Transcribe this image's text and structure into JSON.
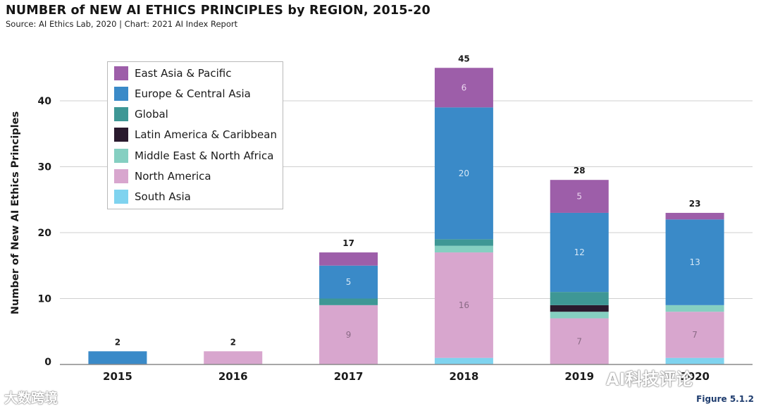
{
  "header": {
    "title": "NUMBER of NEW AI ETHICS PRINCIPLES by REGION, 2015-20",
    "subtitle": "Source: AI Ethics Lab, 2020 | Chart: 2021 AI Index Report"
  },
  "figure_label": "Figure 5.1.2",
  "watermarks": {
    "left": "大数跨境",
    "right": "AI科技评论"
  },
  "chart_data": {
    "type": "bar",
    "stacked": true,
    "title": "NUMBER of NEW AI ETHICS PRINCIPLES by REGION, 2015-20",
    "xlabel": "",
    "ylabel": "Number of New AI Ethics Principles",
    "ylim": [
      0,
      48
    ],
    "yticks": [
      0,
      10,
      20,
      30,
      40
    ],
    "grid": true,
    "legend_position": "top-left",
    "categories": [
      "2015",
      "2016",
      "2017",
      "2018",
      "2019",
      "2020"
    ],
    "totals": [
      2,
      2,
      17,
      45,
      28,
      23
    ],
    "series": [
      {
        "name": "South Asia",
        "color": "#7fd3ef",
        "values": [
          0,
          0,
          0,
          1,
          0,
          1
        ]
      },
      {
        "name": "North America",
        "color": "#d8a6ce",
        "values": [
          0,
          2,
          9,
          16,
          7,
          7
        ]
      },
      {
        "name": "Middle East & North Africa",
        "color": "#85cfc1",
        "values": [
          0,
          0,
          0,
          1,
          1,
          1
        ]
      },
      {
        "name": "Latin America & Caribbean",
        "color": "#2a1a2e",
        "values": [
          0,
          0,
          0,
          0,
          1,
          0
        ]
      },
      {
        "name": "Global",
        "color": "#3e9795",
        "values": [
          0,
          0,
          1,
          1,
          2,
          0
        ]
      },
      {
        "name": "Europe & Central Asia",
        "color": "#3a8ac8",
        "values": [
          2,
          0,
          5,
          20,
          12,
          13
        ]
      },
      {
        "name": "East Asia & Pacific",
        "color": "#9d5ea9",
        "values": [
          0,
          0,
          2,
          6,
          5,
          1
        ]
      }
    ],
    "segment_labels": [
      {
        "category": "2017",
        "series": "North America",
        "text": "9"
      },
      {
        "category": "2017",
        "series": "Europe & Central Asia",
        "text": "5"
      },
      {
        "category": "2018",
        "series": "North America",
        "text": "16"
      },
      {
        "category": "2018",
        "series": "Europe & Central Asia",
        "text": "20"
      },
      {
        "category": "2018",
        "series": "East Asia & Pacific",
        "text": "6"
      },
      {
        "category": "2019",
        "series": "North America",
        "text": "7"
      },
      {
        "category": "2019",
        "series": "Europe & Central Asia",
        "text": "12"
      },
      {
        "category": "2019",
        "series": "East Asia & Pacific",
        "text": "5"
      },
      {
        "category": "2020",
        "series": "North America",
        "text": "7"
      },
      {
        "category": "2020",
        "series": "Europe & Central Asia",
        "text": "13"
      }
    ]
  },
  "legend": [
    {
      "label": "East Asia & Pacific",
      "color": "#9d5ea9"
    },
    {
      "label": "Europe & Central Asia",
      "color": "#3a8ac8"
    },
    {
      "label": "Global",
      "color": "#3e9795"
    },
    {
      "label": "Latin America & Caribbean",
      "color": "#2a1a2e"
    },
    {
      "label": "Middle East & North Africa",
      "color": "#85cfc1"
    },
    {
      "label": "North America",
      "color": "#d8a6ce"
    },
    {
      "label": "South Asia",
      "color": "#7fd3ef"
    }
  ]
}
